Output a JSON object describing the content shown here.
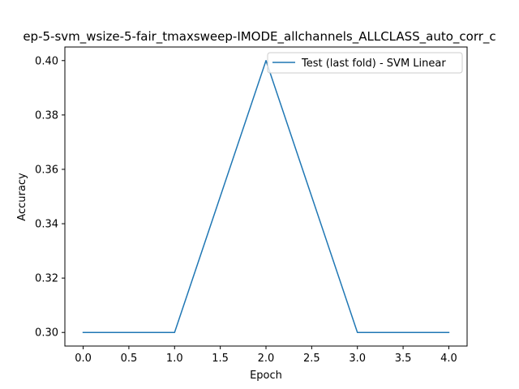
{
  "chart_data": {
    "type": "line",
    "title": "ep-5-svm_wsize-5-fair_tmaxsweep-IMODE_allchannels_ALLCLASS_auto_corr_c",
    "xlabel": "Epoch",
    "ylabel": "Accuracy",
    "xlim": [
      -0.2,
      4.2
    ],
    "ylim": [
      0.295,
      0.405
    ],
    "x_ticks": [
      0.0,
      0.5,
      1.0,
      1.5,
      2.0,
      2.5,
      3.0,
      3.5,
      4.0
    ],
    "x_tick_labels": [
      "0.0",
      "0.5",
      "1.0",
      "1.5",
      "2.0",
      "2.5",
      "3.0",
      "3.5",
      "4.0"
    ],
    "y_ticks": [
      0.3,
      0.32,
      0.34,
      0.36,
      0.38,
      0.4
    ],
    "y_tick_labels": [
      "0.30",
      "0.32",
      "0.34",
      "0.36",
      "0.38",
      "0.40"
    ],
    "grid": false,
    "legend_position": "top-right",
    "series": [
      {
        "name": "Test (last fold) - SVM Linear",
        "color": "#1f77b4",
        "x": [
          0,
          1,
          2,
          3,
          4
        ],
        "y": [
          0.3,
          0.3,
          0.4,
          0.3,
          0.3
        ]
      }
    ]
  }
}
